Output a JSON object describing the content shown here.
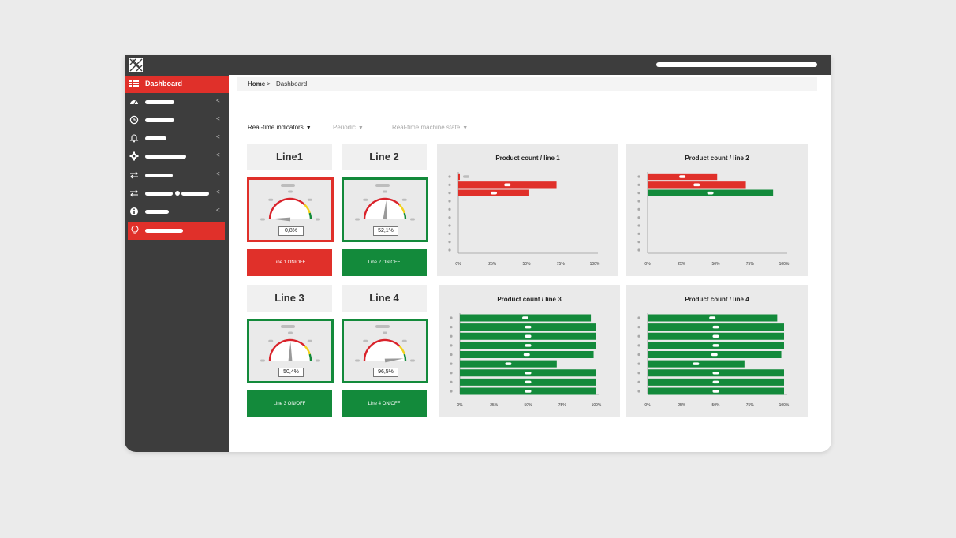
{
  "breadcrumb": {
    "home": "Home",
    "separator": ">",
    "current": "Dashboard"
  },
  "sidebar": {
    "dashboard_label": "Dashboard",
    "items": [
      {
        "icon": "speedometer-icon"
      },
      {
        "icon": "clock-icon"
      },
      {
        "icon": "bell-icon"
      },
      {
        "icon": "gear-icon"
      },
      {
        "icon": "transfer-icon"
      },
      {
        "icon": "transfer-icon"
      },
      {
        "icon": "info-icon"
      },
      {
        "icon": "lightbulb-icon"
      }
    ]
  },
  "tabs": [
    {
      "label": "Real-time indicators",
      "active": true
    },
    {
      "label": "Periodic",
      "active": false
    },
    {
      "label": "Real-time machine state",
      "active": false
    }
  ],
  "lines": [
    {
      "title": "Line1",
      "gauge_value": "0,8%",
      "gauge_fraction": 0.008,
      "toggle_label": "Line 1 ON/OFF",
      "state_color": "#e0302a"
    },
    {
      "title": "Line 2",
      "gauge_value": "52,1%",
      "gauge_fraction": 0.521,
      "toggle_label": "Line 2 ON/OFF",
      "state_color": "#138a3b"
    },
    {
      "title": "Line 3",
      "gauge_value": "50,4%",
      "gauge_fraction": 0.504,
      "toggle_label": "Line 3 ON/OFF",
      "state_color": "#138a3b"
    },
    {
      "title": "Line 4",
      "gauge_value": "96,5%",
      "gauge_fraction": 0.965,
      "toggle_label": "Line 4 ON/OFF",
      "state_color": "#138a3b"
    }
  ],
  "colors": {
    "accent": "#e0302a",
    "ok": "#138a3b",
    "sidebar": "#3d3d3d"
  },
  "chart_data": [
    {
      "type": "bar",
      "title": "Product count / line 1",
      "xlim": [
        0,
        100
      ],
      "xticks": [
        "0%",
        "25%",
        "50%",
        "75%",
        "100%"
      ],
      "rows": 10,
      "values": [
        1,
        72,
        52
      ],
      "colors": [
        "#e0302a",
        "#e0302a",
        "#e0302a"
      ]
    },
    {
      "type": "bar",
      "title": "Product count / line 2",
      "xlim": [
        0,
        100
      ],
      "xticks": [
        "0%",
        "25%",
        "50%",
        "75%",
        "100%"
      ],
      "rows": 10,
      "values": [
        51,
        72,
        92
      ],
      "colors": [
        "#e0302a",
        "#e0302a",
        "#138a3b"
      ]
    },
    {
      "type": "bar",
      "title": "Product count / line 3",
      "xlim": [
        0,
        100
      ],
      "xticks": [
        "0%",
        "25%",
        "50%",
        "75%",
        "100%"
      ],
      "rows": 9,
      "values": [
        96,
        100,
        100,
        100,
        98,
        71,
        100,
        100,
        100
      ],
      "colors": [
        "#138a3b",
        "#138a3b",
        "#138a3b",
        "#138a3b",
        "#138a3b",
        "#138a3b",
        "#138a3b",
        "#138a3b",
        "#138a3b"
      ]
    },
    {
      "type": "bar",
      "title": "Product count / line 4",
      "xlim": [
        0,
        100
      ],
      "xticks": [
        "0%",
        "25%",
        "50%",
        "75%",
        "100%"
      ],
      "rows": 9,
      "values": [
        95,
        100,
        100,
        100,
        98,
        71,
        100,
        100,
        100
      ],
      "colors": [
        "#138a3b",
        "#138a3b",
        "#138a3b",
        "#138a3b",
        "#138a3b",
        "#138a3b",
        "#138a3b",
        "#138a3b",
        "#138a3b"
      ]
    }
  ]
}
